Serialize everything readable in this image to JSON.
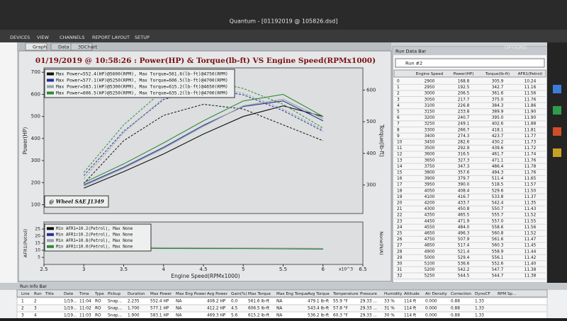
{
  "window": {
    "title": "Quantum - [01192019 @ 105826.dsd]",
    "menu": [
      "DEVICES",
      "VIEW",
      "CHANNELS",
      "REPORT LAYOUT",
      "SETUP"
    ],
    "options": "OPTIONS"
  },
  "tabs": [
    "Graph",
    "Data",
    "3DChart"
  ],
  "chart_data": [
    {
      "type": "line",
      "title": "01/19/2019 @ 10:58:26 : Power(HP) & Torque(lb-ft) VS Engine Speed(RPMx1000)",
      "ylabel": "Power(HP)",
      "y2label": "Torque(lb-ft)",
      "annotation": "@ Wheel SAE J1349",
      "xlim": [
        2.5,
        6.5
      ],
      "ylim": [
        60,
        720
      ],
      "yticks": [
        100,
        200,
        300,
        400,
        500,
        600,
        700
      ],
      "y2lim": [
        210,
        670
      ],
      "y2ticks": [
        300,
        400,
        500,
        600
      ],
      "series": [
        {
          "name": "Max Power=552.4(HP)@5600(RPM), Max Torque=561.6(lb-ft)@4750(RPM)",
          "color": "#111111",
          "x": [
            3.0,
            3.5,
            4.0,
            4.5,
            5.0,
            5.5,
            6.0
          ],
          "values": [
            175,
            250,
            330,
            420,
            500,
            548,
            500
          ],
          "torque": [
            305,
            440,
            520,
            555,
            540,
            490,
            440
          ]
        },
        {
          "name": "Max Power=577.1(HP)@5250(RPM), Max Torque=606.5(lb-ft)@4700(RPM)",
          "color": "#23309a",
          "x": [
            3.0,
            3.5,
            4.0,
            4.5,
            5.0,
            5.5,
            6.0
          ],
          "values": [
            190,
            270,
            360,
            460,
            545,
            570,
            480
          ],
          "torque": [
            330,
            470,
            570,
            605,
            585,
            535,
            470
          ]
        },
        {
          "name": "Max Power=583.1(HP)@5300(RPM), Max Torque=615.2(lb-ft)@4650(RPM)",
          "color": "#9aa0a6",
          "x": [
            3.0,
            3.5,
            4.0,
            4.5,
            5.0,
            5.5,
            6.0
          ],
          "values": [
            185,
            265,
            355,
            455,
            548,
            578,
            490
          ],
          "torque": [
            320,
            465,
            575,
            612,
            590,
            540,
            475
          ]
        },
        {
          "name": "Max Power=606.5(HP)@5250(RPM), Max Torque=635.2(lb-ft)@4700(RPM)",
          "color": "#2e8b3a",
          "x": [
            3.0,
            3.5,
            4.0,
            4.5,
            5.0,
            5.5,
            6.0
          ],
          "values": [
            200,
            285,
            380,
            480,
            570,
            600,
            500
          ],
          "torque": [
            340,
            490,
            600,
            632,
            605,
            555,
            480
          ]
        }
      ]
    },
    {
      "type": "line",
      "xlabel": "Engine Speed(RPMx1000)",
      "x_multiplier": "x10^3",
      "ylabel": "AFR1(Petrol)",
      "y2label": "None(N/A)",
      "xlim": [
        2.5,
        6.5
      ],
      "xticks": [
        2.5,
        3,
        3.5,
        4,
        4.5,
        5,
        5.5,
        6,
        6.5
      ],
      "ylim": [
        0,
        30
      ],
      "yticks": [
        5,
        10,
        15,
        20,
        25
      ],
      "series": [
        {
          "name": "Min AFR1=10.2(Petrol), Max None",
          "color": "#111111",
          "x": [
            3.0,
            3.5,
            4.0,
            4.5,
            5.0,
            5.5,
            6.0
          ],
          "values": [
            11.9,
            11.8,
            11.6,
            11.5,
            11.4,
            11.3,
            11.1
          ]
        },
        {
          "name": "Min AFR1=10.2(Petrol), Max None",
          "color": "#23309a",
          "x": [
            3.0,
            3.5,
            4.0,
            4.5,
            5.0,
            5.5,
            6.0
          ],
          "values": [
            11.8,
            11.7,
            11.4,
            11.5,
            11.4,
            11.2,
            11.0
          ]
        },
        {
          "name": "Min AFR1=10.8(Petrol), Max None",
          "color": "#9aa0a6",
          "x": [
            3.0,
            3.5,
            4.0,
            4.5,
            5.0,
            5.5,
            6.0
          ],
          "values": [
            12.2,
            12.0,
            11.8,
            11.7,
            11.6,
            11.5,
            11.3
          ]
        },
        {
          "name": "Min AFR1=10.0(Petrol), Max None",
          "color": "#2e8b3a",
          "x": [
            3.0,
            3.5,
            4.0,
            4.5,
            5.0,
            5.5,
            6.0
          ],
          "values": [
            11.6,
            11.5,
            11.3,
            11.2,
            11.2,
            11.0,
            10.8
          ]
        }
      ]
    }
  ],
  "run_data_bar": {
    "title": "Run Data Bar",
    "run": "Run #2",
    "columns": [
      "Engine Speed",
      "Power(HP)",
      "Torque(lb-ft)",
      "AFR1(Petrol)"
    ],
    "rows": [
      [
        "0",
        "2900",
        "168.8",
        "305.9",
        "10.24"
      ],
      [
        "1",
        "2950",
        "192.5",
        "342.7",
        "11.16"
      ],
      [
        "2",
        "3000",
        "206.5",
        "361.6",
        "11.56"
      ],
      [
        "3",
        "3050",
        "217.7",
        "375.0",
        "11.76"
      ],
      [
        "4",
        "3100",
        "226.8",
        "384.3",
        "11.86"
      ],
      [
        "5",
        "3150",
        "233.8",
        "389.9",
        "11.90"
      ],
      [
        "6",
        "3200",
        "240.7",
        "395.0",
        "11.90"
      ],
      [
        "7",
        "3250",
        "249.1",
        "402.6",
        "11.88"
      ],
      [
        "8",
        "3300",
        "266.7",
        "418.1",
        "11.81"
      ],
      [
        "9",
        "3400",
        "274.3",
        "423.7",
        "11.77"
      ],
      [
        "10",
        "3450",
        "282.6",
        "430.2",
        "11.73"
      ],
      [
        "11",
        "3500",
        "292.9",
        "439.6",
        "11.72"
      ],
      [
        "12",
        "3600",
        "316.5",
        "461.7",
        "11.74"
      ],
      [
        "13",
        "3650",
        "327.3",
        "471.1",
        "11.76"
      ],
      [
        "14",
        "3750",
        "347.3",
        "486.4",
        "11.78"
      ],
      [
        "15",
        "3800",
        "357.6",
        "494.3",
        "11.76"
      ],
      [
        "16",
        "3900",
        "379.7",
        "511.4",
        "11.65"
      ],
      [
        "17",
        "3950",
        "390.0",
        "518.5",
        "11.57"
      ],
      [
        "18",
        "4050",
        "408.4",
        "529.6",
        "11.50"
      ],
      [
        "19",
        "4100",
        "416.7",
        "533.8",
        "11.37"
      ],
      [
        "20",
        "4200",
        "433.7",
        "542.4",
        "11.35"
      ],
      [
        "21",
        "4300",
        "450.8",
        "550.7",
        "11.43"
      ],
      [
        "22",
        "4350",
        "465.5",
        "555.7",
        "11.52"
      ],
      [
        "23",
        "4450",
        "471.9",
        "557.0",
        "11.55"
      ],
      [
        "24",
        "4550",
        "484.0",
        "558.6",
        "11.56"
      ],
      [
        "25",
        "4650",
        "496.3",
        "560.8",
        "11.52"
      ],
      [
        "26",
        "4750",
        "507.9",
        "561.6",
        "11.47"
      ],
      [
        "27",
        "4850",
        "517.4",
        "560.3",
        "11.45"
      ],
      [
        "28",
        "4900",
        "521.4",
        "558.9",
        "11.44"
      ],
      [
        "29",
        "5000",
        "529.4",
        "556.1",
        "11.42"
      ],
      [
        "30",
        "5100",
        "536.6",
        "552.6",
        "11.40"
      ],
      [
        "31",
        "5200",
        "542.2",
        "547.7",
        "11.38"
      ],
      [
        "32",
        "5250",
        "544.5",
        "544.7",
        "11.38"
      ]
    ]
  },
  "run_info_bar": {
    "title": "Run Info Bar",
    "columns": [
      "Line",
      "Run",
      "Title",
      "Date",
      "Time",
      "Type",
      "Pickup",
      "Duration",
      "Max Power",
      "Max Eng Power",
      "Avg Power",
      "Gain(%)",
      "Max Torque",
      "Max Eng Torque",
      "Avg Torque",
      "Temperature",
      "Pressure",
      "Humidity",
      "Altitude",
      "Air Density",
      "Correction",
      "DynoCF",
      "RPM Sp..."
    ],
    "rows": [
      [
        "1",
        "2",
        "",
        "1/19...",
        "11:04",
        "RO",
        "Snap...",
        "2.235",
        "552.4 HP",
        "NA",
        "408.2 HP",
        "0.0",
        "561.6 lb-ft",
        "NA",
        "479.1 lb-ft",
        "55.9 °F",
        "29.33 ...",
        "33 %",
        "114 ft",
        "0.000",
        "0.88",
        "1.33"
      ],
      [
        "2",
        "3",
        "",
        "1/19...",
        "11:02",
        "RO",
        "Snap...",
        "1.700",
        "577.1 HP",
        "NA",
        "412.2 HP",
        "4.5",
        "606.5 lb-ft",
        "NA",
        "543.4 lb-ft",
        "57.8 °F",
        "29.33 ...",
        "31 %",
        "114 ft",
        "0.000",
        "0.88",
        "1.33"
      ],
      [
        "3",
        "4",
        "",
        "1/19...",
        "11:03",
        "RO",
        "Snap...",
        "1.900",
        "583.1 HP",
        "NA",
        "469.3 HP",
        "5.6",
        "615.2 lb-ft",
        "NA",
        "536.2 lb-ft",
        "60.3 °F",
        "29.33 ...",
        "30 %",
        "114 ft",
        "0.000",
        "0.88",
        "1.33"
      ]
    ]
  }
}
